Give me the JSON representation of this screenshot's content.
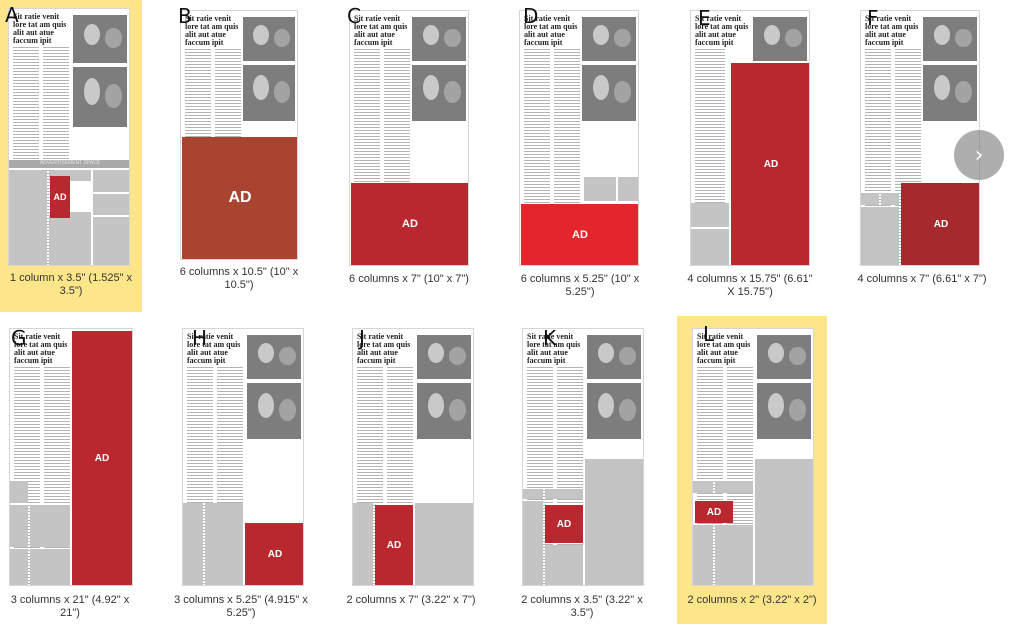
{
  "headline": "Sit ratie venit lore tat am quis alit aut atue faccum ipit",
  "colors": {
    "selected_bg": "#fde58a",
    "ad_brown": "#a84430",
    "ad_red": "#b9282f",
    "ad_bright_red": "#e3262b",
    "ad_dark_red": "#a52a2e",
    "block_gray": "#c4c4c4"
  },
  "grayband_text": "ADVERTISEMENT SPACE",
  "nav": {
    "next_icon": "chevron-right-icon",
    "label": "›"
  },
  "options": [
    {
      "letter": "A",
      "caption": "1 column x 3.5\" (1.525\" x 3.5\")",
      "ad": "AD",
      "selected": true
    },
    {
      "letter": "B",
      "caption": "6 columns x 10.5\" (10\" x 10.5\")",
      "ad": "AD",
      "selected": false
    },
    {
      "letter": "C",
      "caption": "6 columns x 7\" (10\" x 7\")",
      "ad": "AD",
      "selected": false
    },
    {
      "letter": "D",
      "caption": "6 columns x 5.25\" (10\" x 5.25\")",
      "ad": "AD",
      "selected": false
    },
    {
      "letter": "E",
      "caption": "4 columns x 15.75\" (6.61\" X 15.75\")",
      "ad": "AD",
      "selected": false
    },
    {
      "letter": "F",
      "caption": "4 columns x 7\" (6.61\" x 7\")",
      "ad": "AD",
      "selected": false
    },
    {
      "letter": "G",
      "caption": "3 columns x 21\" (4.92\" x 21\")",
      "ad": "AD",
      "selected": false
    },
    {
      "letter": "H",
      "caption": "3 columns x 5.25\" (4.915\" x 5.25\")",
      "ad": "AD",
      "selected": false
    },
    {
      "letter": "J",
      "caption": "2 columns x 7\" (3.22\" x 7\")",
      "ad": "AD",
      "selected": false
    },
    {
      "letter": "K",
      "caption": "2 columns x 3.5\" (3.22\" x 3.5\")",
      "ad": "AD",
      "selected": false
    },
    {
      "letter": "L",
      "caption": "2 columns x 2\" (3.22\" x 2\")",
      "ad": "AD",
      "selected": true
    }
  ]
}
